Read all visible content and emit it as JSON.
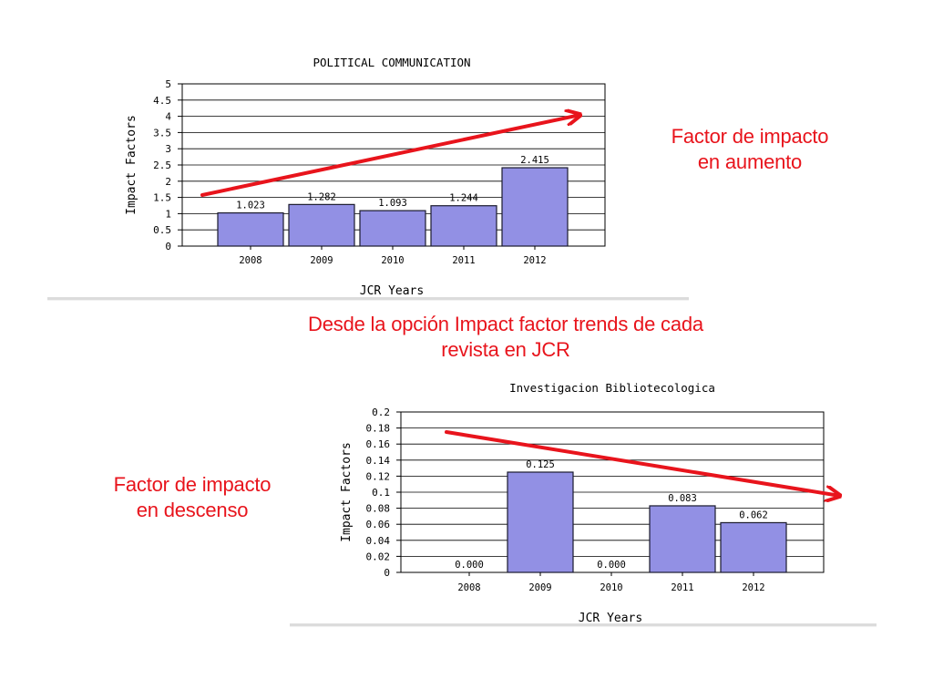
{
  "captions": {
    "increase": [
      "Factor de impacto",
      "en aumento"
    ],
    "source": [
      "Desde la opción Impact factor trends  de cada",
      "revista en JCR"
    ],
    "decrease": [
      "Factor de impacto",
      "en descenso"
    ]
  },
  "colors": {
    "bar_fill": "#9290e4",
    "bar_stroke": "#1a1a2e",
    "trend_arrow": "#e8141c",
    "caption_text": "#e8141c"
  },
  "chart_data": [
    {
      "type": "bar",
      "title": "POLITICAL COMMUNICATION",
      "xlabel": "JCR Years",
      "ylabel": "Impact Factors",
      "categories": [
        "2008",
        "2009",
        "2010",
        "2011",
        "2012"
      ],
      "values": [
        1.023,
        1.282,
        1.093,
        1.244,
        2.415
      ],
      "value_labels": [
        "1.023",
        "1.282",
        "1.093",
        "1.244",
        "2.415"
      ],
      "ylim": [
        0,
        5
      ],
      "yticks": [
        "0",
        "0.5",
        "1",
        "1.5",
        "2",
        "2.5",
        "3",
        "3.5",
        "4",
        "4.5",
        "5"
      ],
      "grid": true,
      "trend_arrow": "increasing"
    },
    {
      "type": "bar",
      "title": "Investigacion Bibliotecologica",
      "xlabel": "JCR Years",
      "ylabel": "Impact Factors",
      "categories": [
        "2008",
        "2009",
        "2010",
        "2011",
        "2012"
      ],
      "values": [
        0.0,
        0.125,
        0.0,
        0.083,
        0.062
      ],
      "value_labels": [
        "0.000",
        "0.125",
        "0.000",
        "0.083",
        "0.062"
      ],
      "ylim": [
        0,
        0.2
      ],
      "yticks": [
        "0",
        "0.02",
        "0.04",
        "0.06",
        "0.08",
        "0.1",
        "0.12",
        "0.14",
        "0.16",
        "0.18",
        "0.2"
      ],
      "grid": true,
      "trend_arrow": "decreasing"
    }
  ]
}
